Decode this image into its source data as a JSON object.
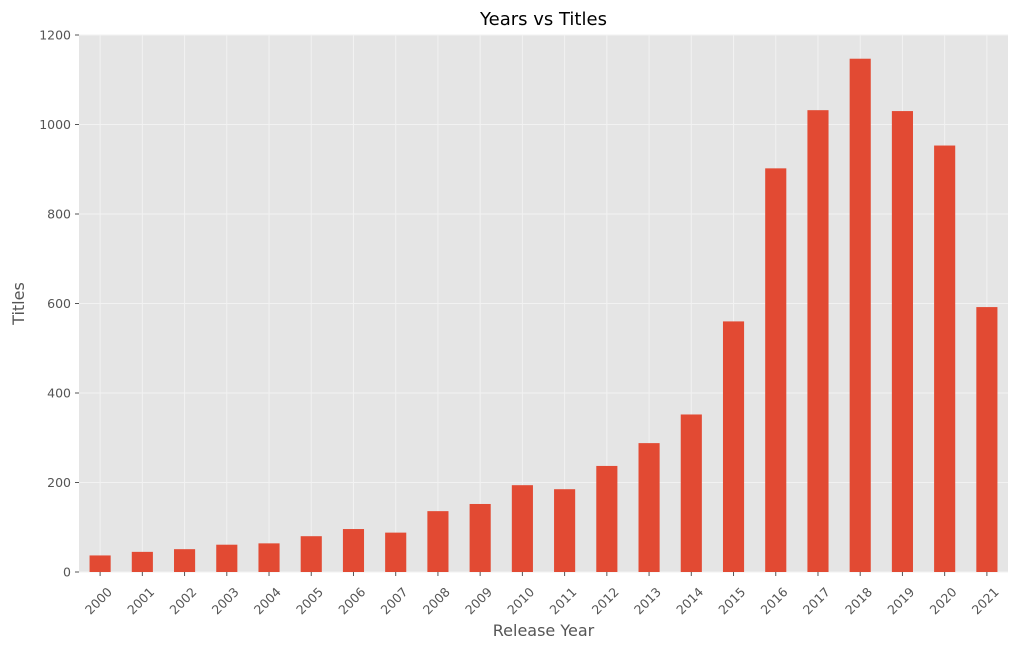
{
  "chart_data": {
    "type": "bar",
    "title": "Years vs Titles",
    "xlabel": "Release Year",
    "ylabel": "Titles",
    "categories": [
      "2000",
      "2001",
      "2002",
      "2003",
      "2004",
      "2005",
      "2006",
      "2007",
      "2008",
      "2009",
      "2010",
      "2011",
      "2012",
      "2013",
      "2014",
      "2015",
      "2016",
      "2017",
      "2018",
      "2019",
      "2020",
      "2021"
    ],
    "values": [
      37,
      45,
      51,
      61,
      64,
      80,
      96,
      88,
      136,
      152,
      194,
      185,
      237,
      288,
      352,
      560,
      902,
      1032,
      1147,
      1030,
      953,
      592
    ],
    "ylim": [
      0,
      1200
    ],
    "yticks": [
      0,
      200,
      400,
      600,
      800,
      1000,
      1200
    ],
    "grid": true,
    "style": "ggplot",
    "colors": {
      "bar": "#E24A33",
      "plot_background": "#E5E5E5",
      "grid": "#F2F2F2",
      "tick_text": "#555555",
      "title_text": "#000000"
    }
  }
}
